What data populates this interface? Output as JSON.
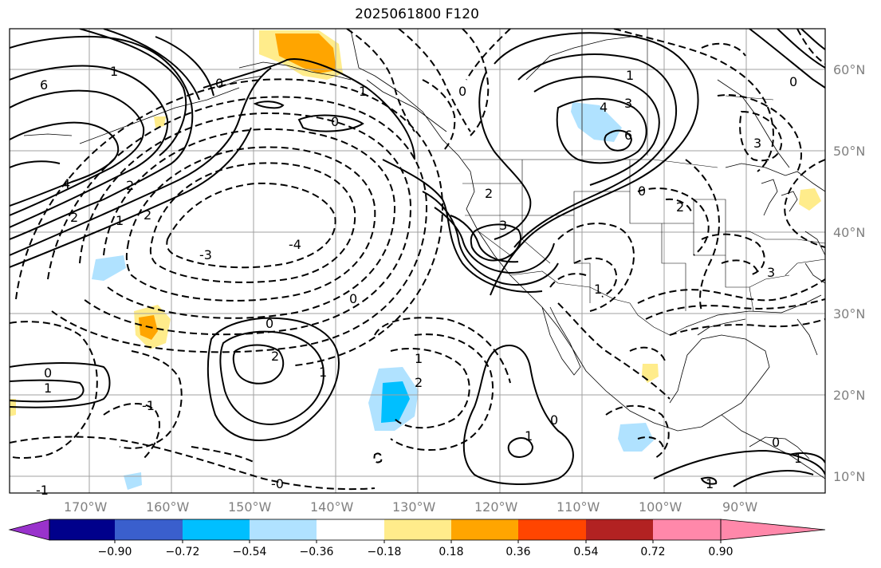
{
  "title": "2025061800 F120",
  "map": {
    "lon_labels": [
      "170°W",
      "160°W",
      "150°W",
      "140°W",
      "130°W",
      "120°W",
      "110°W",
      "100°W",
      "90°W"
    ],
    "lat_labels": [
      "60°N",
      "50°N",
      "40°N",
      "30°N",
      "20°N",
      "10°N"
    ],
    "contour_labels": [
      {
        "id": "c1",
        "text": "6"
      },
      {
        "id": "c2",
        "text": "4"
      },
      {
        "id": "c3",
        "text": "2"
      },
      {
        "id": "c4",
        "text": "1"
      },
      {
        "id": "c5",
        "text": "2"
      },
      {
        "id": "c6",
        "text": "2"
      },
      {
        "id": "c7",
        "text": "-3"
      },
      {
        "id": "c8",
        "text": "-4"
      },
      {
        "id": "c9",
        "text": "0"
      },
      {
        "id": "c10",
        "text": "0"
      },
      {
        "id": "c11",
        "text": "2"
      },
      {
        "id": "c12",
        "text": "1"
      },
      {
        "id": "c13",
        "text": "0"
      },
      {
        "id": "c14",
        "text": "1"
      },
      {
        "id": "c15",
        "text": "-1"
      },
      {
        "id": "c16",
        "text": "0"
      },
      {
        "id": "c17",
        "text": "1"
      },
      {
        "id": "c18",
        "text": "2"
      },
      {
        "id": "c19",
        "text": "-1"
      },
      {
        "id": "c20",
        "text": "-0"
      },
      {
        "id": "c21",
        "text": "0"
      },
      {
        "id": "c22",
        "text": "1"
      },
      {
        "id": "c23",
        "text": "2"
      },
      {
        "id": "c24",
        "text": "3"
      },
      {
        "id": "c25",
        "text": "4"
      },
      {
        "id": "c26",
        "text": "3"
      },
      {
        "id": "c27",
        "text": "6"
      },
      {
        "id": "c28",
        "text": "1"
      },
      {
        "id": "c29",
        "text": "0"
      },
      {
        "id": "c30",
        "text": "2"
      },
      {
        "id": "c31",
        "text": "0"
      },
      {
        "id": "c32",
        "text": "1"
      },
      {
        "id": "c33",
        "text": "1"
      },
      {
        "id": "c34",
        "text": "0"
      },
      {
        "id": "c35",
        "text": "3"
      },
      {
        "id": "c36",
        "text": "0"
      },
      {
        "id": "c37",
        "text": "3"
      },
      {
        "id": "c38",
        "text": "0"
      },
      {
        "id": "c39",
        "text": "1"
      },
      {
        "id": "c40",
        "text": "1"
      },
      {
        "id": "c41",
        "text": "1"
      }
    ]
  },
  "colorbar": {
    "colors": [
      "#9932cc",
      "#00008b",
      "#3a5fcd",
      "#00bfff",
      "#b0e2ff",
      "#ffffff",
      "#ffec8b",
      "#ffa500",
      "#ff4500",
      "#b22222",
      "#ff88aa"
    ],
    "tick_labels": [
      "−0.90",
      "−0.72",
      "−0.54",
      "−0.36",
      "−0.18",
      "0.18",
      "0.36",
      "0.54",
      "0.72",
      "0.90"
    ]
  }
}
